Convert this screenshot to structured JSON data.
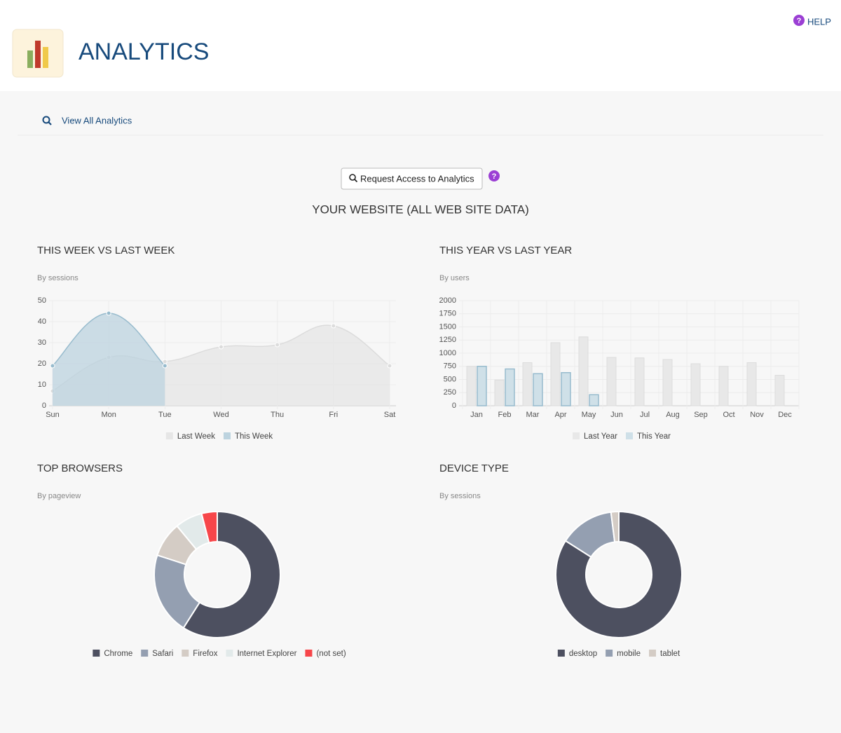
{
  "header": {
    "title": "ANALYTICS",
    "help": "HELP"
  },
  "nav": {
    "link": "View All Analytics"
  },
  "button": "Request Access to Analytics",
  "section_title": "YOUR WEBSITE (ALL WEB SITE DATA)",
  "chart_data": [
    {
      "type": "area",
      "title": "THIS WEEK VS LAST WEEK",
      "subtitle": "By sessions",
      "categories": [
        "Sun",
        "Mon",
        "Tue",
        "Wed",
        "Thu",
        "Fri",
        "Sat"
      ],
      "series": [
        {
          "name": "Last Week",
          "color": "#dcdcdc",
          "fill": "#e6e6e6",
          "values": [
            7,
            23,
            21,
            28,
            29,
            38,
            19
          ]
        },
        {
          "name": "This Week",
          "color": "#97bbcd",
          "fill": "#bcd3df",
          "values": [
            19,
            44,
            19,
            null,
            null,
            null,
            null
          ]
        }
      ],
      "ylim": [
        0,
        50
      ],
      "yticks": [
        0,
        10,
        20,
        30,
        40,
        50
      ],
      "grid": true,
      "legend": "bottom"
    },
    {
      "type": "bar",
      "title": "THIS YEAR VS LAST YEAR",
      "subtitle": "By users",
      "categories": [
        "Jan",
        "Feb",
        "Mar",
        "Apr",
        "May",
        "Jun",
        "Jul",
        "Aug",
        "Sep",
        "Oct",
        "Nov",
        "Dec"
      ],
      "series": [
        {
          "name": "Last Year",
          "color": "#dcdcdc",
          "fill": "#e8e8e8",
          "values": [
            750,
            490,
            820,
            1200,
            1310,
            920,
            910,
            880,
            800,
            750,
            820,
            580
          ]
        },
        {
          "name": "This Year",
          "color": "#97bbcd",
          "fill": "#cfe0e8",
          "values": [
            750,
            700,
            610,
            630,
            210,
            null,
            null,
            null,
            null,
            null,
            null,
            null
          ]
        }
      ],
      "ylim": [
        0,
        2000
      ],
      "yticks": [
        0,
        250,
        500,
        750,
        1000,
        1250,
        1500,
        1750,
        2000
      ],
      "grid": true,
      "legend": "bottom"
    },
    {
      "type": "doughnut",
      "title": "TOP BROWSERS",
      "subtitle": "By pageview",
      "categories": [
        "Chrome",
        "Safari",
        "Firefox",
        "Internet Explorer",
        "(not set)"
      ],
      "values": [
        59,
        21,
        9,
        7,
        4
      ],
      "colors": [
        "#4d5060",
        "#949fb1",
        "#d4ccc5",
        "#e2eaea",
        "#f7464a"
      ],
      "legend": "bottom"
    },
    {
      "type": "doughnut",
      "title": "DEVICE TYPE",
      "subtitle": "By sessions",
      "categories": [
        "desktop",
        "mobile",
        "tablet"
      ],
      "values": [
        84,
        14,
        2
      ],
      "colors": [
        "#4d5060",
        "#949fb1",
        "#d4ccc5"
      ],
      "legend": "bottom"
    }
  ]
}
